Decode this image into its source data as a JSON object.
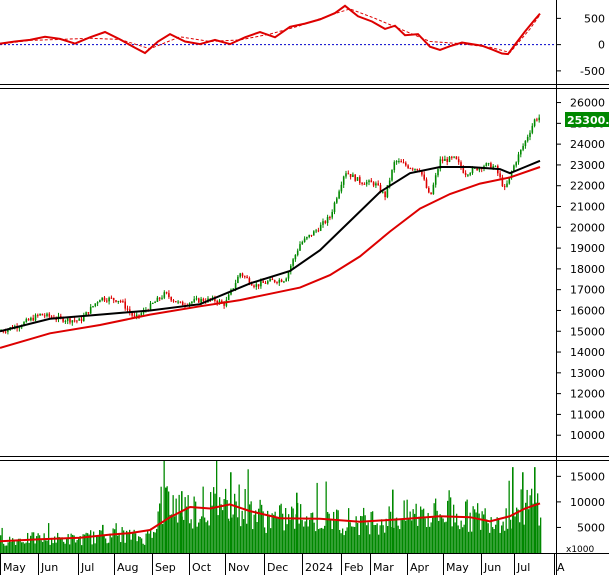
{
  "chart_data": [
    {
      "type": "line",
      "panel": "oscillator",
      "y_ticks": [
        "500",
        "0",
        "-500"
      ],
      "y_tick_values": [
        500,
        0,
        -500
      ],
      "ylim": [
        -750,
        850
      ],
      "zero_line": "blue-dotted",
      "series": [
        {
          "color": "#dd0000",
          "style": "solid",
          "points": [
            [
              0,
              20
            ],
            [
              15,
              60
            ],
            [
              30,
              90
            ],
            [
              45,
              150
            ],
            [
              60,
              110
            ],
            [
              75,
              20
            ],
            [
              90,
              140
            ],
            [
              105,
              240
            ],
            [
              120,
              100
            ],
            [
              135,
              -60
            ],
            [
              145,
              -160
            ],
            [
              158,
              60
            ],
            [
              170,
              200
            ],
            [
              185,
              60
            ],
            [
              200,
              10
            ],
            [
              215,
              90
            ],
            [
              230,
              10
            ],
            [
              245,
              140
            ],
            [
              260,
              240
            ],
            [
              275,
              140
            ],
            [
              290,
              340
            ],
            [
              305,
              400
            ],
            [
              320,
              480
            ],
            [
              335,
              600
            ],
            [
              345,
              740
            ],
            [
              358,
              540
            ],
            [
              372,
              440
            ],
            [
              385,
              300
            ],
            [
              395,
              360
            ],
            [
              405,
              180
            ],
            [
              418,
              200
            ],
            [
              430,
              -40
            ],
            [
              440,
              -100
            ],
            [
              450,
              -30
            ],
            [
              462,
              40
            ],
            [
              472,
              10
            ],
            [
              482,
              -20
            ],
            [
              492,
              -90
            ],
            [
              502,
              -170
            ],
            [
              508,
              -180
            ],
            [
              515,
              0
            ],
            [
              525,
              250
            ],
            [
              535,
              480
            ],
            [
              540,
              590
            ]
          ]
        },
        {
          "color": "#dd0000",
          "style": "dashed",
          "points": [
            [
              0,
              10
            ],
            [
              30,
              80
            ],
            [
              60,
              100
            ],
            [
              90,
              120
            ],
            [
              120,
              100
            ],
            [
              150,
              -80
            ],
            [
              180,
              150
            ],
            [
              210,
              60
            ],
            [
              240,
              90
            ],
            [
              270,
              200
            ],
            [
              300,
              360
            ],
            [
              330,
              560
            ],
            [
              350,
              680
            ],
            [
              375,
              500
            ],
            [
              400,
              300
            ],
            [
              430,
              60
            ],
            [
              460,
              20
            ],
            [
              490,
              -50
            ],
            [
              510,
              -150
            ],
            [
              530,
              300
            ],
            [
              540,
              570
            ]
          ]
        }
      ]
    },
    {
      "type": "candlestick",
      "panel": "price",
      "y_ticks": [
        "26000",
        "25000",
        "24000",
        "23000",
        "22000",
        "21000",
        "20000",
        "19000",
        "18000",
        "17000",
        "16000",
        "15000",
        "14000",
        "13000",
        "12000",
        "11000",
        "10000"
      ],
      "y_tick_values": [
        26000,
        25000,
        24000,
        23000,
        22000,
        21000,
        20000,
        19000,
        18000,
        17000,
        16000,
        15000,
        14000,
        13000,
        12000,
        11000,
        10000
      ],
      "ylim": [
        9000,
        26700
      ],
      "last_price_label": "25300.00",
      "last_price": 25300,
      "anchor_close": [
        [
          0,
          15000
        ],
        [
          20,
          15300
        ],
        [
          40,
          15800
        ],
        [
          60,
          15600
        ],
        [
          80,
          15500
        ],
        [
          100,
          16600
        ],
        [
          120,
          16500
        ],
        [
          135,
          15600
        ],
        [
          150,
          16200
        ],
        [
          165,
          16800
        ],
        [
          180,
          16300
        ],
        [
          200,
          16500
        ],
        [
          215,
          16500
        ],
        [
          225,
          16300
        ],
        [
          240,
          17800
        ],
        [
          255,
          17200
        ],
        [
          270,
          17400
        ],
        [
          285,
          17500
        ],
        [
          300,
          19200
        ],
        [
          315,
          19800
        ],
        [
          330,
          20500
        ],
        [
          345,
          22700
        ],
        [
          360,
          22200
        ],
        [
          375,
          22100
        ],
        [
          385,
          21500
        ],
        [
          395,
          23200
        ],
        [
          410,
          22900
        ],
        [
          420,
          22800
        ],
        [
          430,
          21400
        ],
        [
          440,
          23200
        ],
        [
          455,
          23300
        ],
        [
          465,
          22600
        ],
        [
          475,
          22800
        ],
        [
          485,
          23000
        ],
        [
          495,
          22900
        ],
        [
          505,
          21800
        ],
        [
          515,
          23100
        ],
        [
          525,
          24100
        ],
        [
          535,
          25200
        ],
        [
          540,
          25300
        ]
      ],
      "series": [
        {
          "color": "#000000",
          "kind": "moving-average",
          "points": [
            [
              0,
              15000
            ],
            [
              50,
              15600
            ],
            [
              100,
              15800
            ],
            [
              150,
              16000
            ],
            [
              200,
              16300
            ],
            [
              250,
              17300
            ],
            [
              290,
              17900
            ],
            [
              320,
              18900
            ],
            [
              350,
              20300
            ],
            [
              380,
              21700
            ],
            [
              410,
              22600
            ],
            [
              440,
              22900
            ],
            [
              470,
              22900
            ],
            [
              500,
              22800
            ],
            [
              510,
              22600
            ],
            [
              525,
              22900
            ],
            [
              540,
              23200
            ]
          ]
        },
        {
          "color": "#dd0000",
          "kind": "moving-average",
          "points": [
            [
              0,
              14200
            ],
            [
              50,
              14900
            ],
            [
              100,
              15300
            ],
            [
              150,
              15800
            ],
            [
              200,
              16200
            ],
            [
              240,
              16500
            ],
            [
              270,
              16800
            ],
            [
              300,
              17100
            ],
            [
              330,
              17700
            ],
            [
              360,
              18600
            ],
            [
              390,
              19800
            ],
            [
              420,
              20900
            ],
            [
              450,
              21600
            ],
            [
              480,
              22100
            ],
            [
              510,
              22400
            ],
            [
              540,
              22900
            ]
          ]
        }
      ]
    },
    {
      "type": "bar",
      "panel": "volume",
      "y_ticks": [
        "15000",
        "10000",
        "5000"
      ],
      "y_tick_values": [
        15000,
        10000,
        5000
      ],
      "ylim": [
        0,
        18000
      ],
      "unit_label": "x1000",
      "bar_color": "#008800",
      "anchor_volume": [
        [
          0,
          2500
        ],
        [
          40,
          2900
        ],
        [
          80,
          2700
        ],
        [
          120,
          3700
        ],
        [
          145,
          2800
        ],
        [
          155,
          6000
        ],
        [
          165,
          10000
        ],
        [
          180,
          9000
        ],
        [
          200,
          8300
        ],
        [
          230,
          10500
        ],
        [
          250,
          8500
        ],
        [
          270,
          6500
        ],
        [
          300,
          7200
        ],
        [
          330,
          6500
        ],
        [
          360,
          6200
        ],
        [
          390,
          6700
        ],
        [
          420,
          7700
        ],
        [
          450,
          7600
        ],
        [
          470,
          7200
        ],
        [
          490,
          6800
        ],
        [
          505,
          7200
        ],
        [
          515,
          8200
        ],
        [
          525,
          9200
        ],
        [
          540,
          9800
        ]
      ],
      "spikes": [
        [
          102,
          5500
        ],
        [
          165,
          12800
        ],
        [
          181,
          12100
        ],
        [
          230,
          15800
        ],
        [
          296,
          11800
        ],
        [
          392,
          12400
        ],
        [
          512,
          16800
        ],
        [
          522,
          15800
        ],
        [
          534,
          16800
        ]
      ],
      "series": [
        {
          "color": "#dd0000",
          "kind": "moving-average",
          "points": [
            [
              0,
              2300
            ],
            [
              40,
              2700
            ],
            [
              80,
              3000
            ],
            [
              110,
              3600
            ],
            [
              130,
              3900
            ],
            [
              150,
              4500
            ],
            [
              170,
              7000
            ],
            [
              190,
              9000
            ],
            [
              210,
              8700
            ],
            [
              230,
              9500
            ],
            [
              250,
              8200
            ],
            [
              280,
              6800
            ],
            [
              320,
              6700
            ],
            [
              360,
              6100
            ],
            [
              400,
              6600
            ],
            [
              440,
              7200
            ],
            [
              470,
              7000
            ],
            [
              490,
              6200
            ],
            [
              510,
              7200
            ],
            [
              525,
              8700
            ],
            [
              540,
              9700
            ]
          ]
        }
      ]
    },
    {
      "type": "time-axis",
      "labels": [
        {
          "text": "May",
          "x": 0
        },
        {
          "text": "Jun",
          "x": 38
        },
        {
          "text": "Jul",
          "x": 78
        },
        {
          "text": "Aug",
          "x": 114
        },
        {
          "text": "Sep",
          "x": 152
        },
        {
          "text": "Oct",
          "x": 189
        },
        {
          "text": "Nov",
          "x": 225
        },
        {
          "text": "Dec",
          "x": 264
        },
        {
          "text": "2024",
          "x": 302
        },
        {
          "text": "Feb",
          "x": 341
        },
        {
          "text": "Mar",
          "x": 370
        },
        {
          "text": "Apr",
          "x": 407
        },
        {
          "text": "May",
          "x": 443
        },
        {
          "text": "Jun",
          "x": 481
        },
        {
          "text": "Jul",
          "x": 514
        },
        {
          "text": "A",
          "x": 554
        }
      ]
    }
  ]
}
